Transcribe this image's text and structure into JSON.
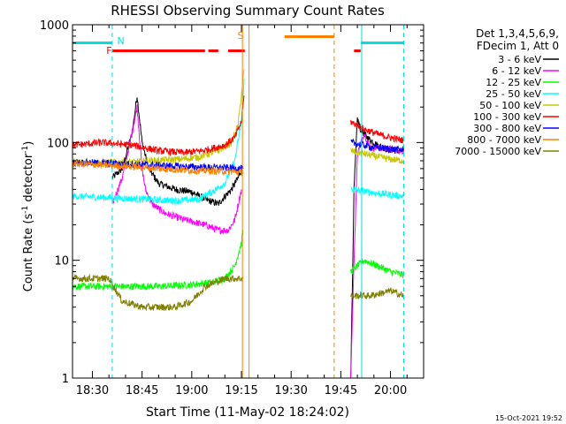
{
  "chart_data": {
    "type": "line",
    "title": "RHESSI Observing Summary Count Rates",
    "xlabel": "Start Time (11-May-02 18:24:02)",
    "ylabel_main": "Count Rate (s",
    "ylabel_sup1": "-1",
    "ylabel_mid": " detector",
    "ylabel_sup2": "-1",
    "ylabel_end": ")",
    "yscale": "log",
    "ylim": [
      1,
      1000
    ],
    "xlim_minutes": [
      -6,
      100
    ],
    "x_origin": "18:24:02",
    "x_ticks": [
      {
        "m": 0,
        "label": "18:30"
      },
      {
        "m": 15,
        "label": "18:45"
      },
      {
        "m": 30,
        "label": "19:00"
      },
      {
        "m": 45,
        "label": "19:15"
      },
      {
        "m": 60,
        "label": "19:30"
      },
      {
        "m": 75,
        "label": "19:45"
      },
      {
        "m": 90,
        "label": "20:00"
      }
    ],
    "y_ticks": [
      {
        "v": 1,
        "label": "1"
      },
      {
        "v": 10,
        "label": "10"
      },
      {
        "v": 100,
        "label": "100"
      },
      {
        "v": 1000,
        "label": "1000"
      }
    ],
    "legend_header": [
      "Det 1,3,4,5,6,9,",
      "FDecim 1, Att 0"
    ],
    "timestamp": "15-Oct-2021 19:52",
    "flags": {
      "night_label": "N",
      "flare_label": "F",
      "saa_label": "S",
      "night": [
        {
          "start": -6,
          "end": 6
        },
        {
          "start": 81,
          "end": 94
        }
      ],
      "flare": [
        {
          "start": 6,
          "end": 34
        },
        {
          "start": 35,
          "end": 38
        },
        {
          "start": 41,
          "end": 46
        }
      ],
      "saa": [
        {
          "start": 58,
          "end": 73
        }
      ],
      "vlines": [
        {
          "m": 6,
          "color": "#00e0e0",
          "dash": true
        },
        {
          "m": 45.3,
          "color": "#ff8000",
          "dash": false
        },
        {
          "m": 47.3,
          "color": "#ff8000",
          "dash": false
        },
        {
          "m": 73,
          "color": "#ff8000",
          "dash": true
        },
        {
          "m": 81.3,
          "color": "#00e0e0",
          "dash": false
        },
        {
          "m": 94,
          "color": "#00e0e0",
          "dash": true
        }
      ]
    },
    "series": [
      {
        "name": "3 - 6 keV",
        "color": "#000000",
        "segments": [
          [
            [
              -6,
              1
            ],
            [
              6,
              1
            ]
          ],
          [
            [
              6,
              50
            ],
            [
              9,
              60
            ],
            [
              12,
              120
            ],
            [
              13.5,
              250
            ],
            [
              15,
              100
            ],
            [
              17,
              60
            ],
            [
              20,
              45
            ],
            [
              25,
              40
            ],
            [
              30,
              38
            ],
            [
              34,
              33
            ],
            [
              38,
              30
            ],
            [
              40,
              35
            ],
            [
              42,
              40
            ],
            [
              44,
              50
            ],
            [
              45,
              60
            ]
          ],
          [
            [
              78,
              1
            ],
            [
              79,
              40
            ],
            [
              80,
              160
            ],
            [
              81,
              130
            ],
            [
              83,
              110
            ],
            [
              86,
              95
            ],
            [
              89,
              88
            ],
            [
              92,
              85
            ],
            [
              94,
              85
            ]
          ]
        ]
      },
      {
        "name": "6 - 12 keV",
        "color": "#ff00ff",
        "segments": [
          [
            [
              -6,
              1
            ],
            [
              6,
              1
            ]
          ],
          [
            [
              6,
              30
            ],
            [
              9,
              50
            ],
            [
              11,
              90
            ],
            [
              13.5,
              200
            ],
            [
              15,
              60
            ],
            [
              16,
              40
            ],
            [
              18,
              30
            ],
            [
              22,
              25
            ],
            [
              28,
              22
            ],
            [
              34,
              20
            ],
            [
              38,
              18
            ],
            [
              41,
              18
            ],
            [
              43,
              22
            ],
            [
              45,
              40
            ]
          ],
          [
            [
              78,
              1
            ],
            [
              79,
              10
            ],
            [
              80,
              80
            ],
            [
              82,
              120
            ],
            [
              84,
              90
            ],
            [
              87,
              90
            ],
            [
              90,
              88
            ],
            [
              94,
              85
            ]
          ]
        ]
      },
      {
        "name": "12 - 25 keV",
        "color": "#00ff00",
        "segments": [
          [
            [
              -6,
              6
            ],
            [
              10,
              6
            ],
            [
              20,
              6
            ],
            [
              30,
              6.2
            ],
            [
              36,
              6.5
            ],
            [
              40,
              7
            ],
            [
              43,
              9
            ],
            [
              45,
              14
            ],
            [
              45.5,
              18
            ]
          ],
          [
            [
              78,
              8
            ],
            [
              82,
              10
            ],
            [
              86,
              9
            ],
            [
              90,
              8
            ],
            [
              94,
              7.5
            ]
          ]
        ]
      },
      {
        "name": "25 - 50 keV",
        "color": "#00ffff",
        "segments": [
          [
            [
              -6,
              35
            ],
            [
              5,
              34
            ],
            [
              15,
              33
            ],
            [
              25,
              32
            ],
            [
              32,
              33
            ],
            [
              36,
              38
            ],
            [
              40,
              45
            ],
            [
              43,
              70
            ],
            [
              45,
              150
            ],
            [
              45.8,
              350
            ]
          ],
          [
            [
              78,
              40
            ],
            [
              86,
              37
            ],
            [
              90,
              36
            ],
            [
              94,
              35
            ]
          ]
        ]
      },
      {
        "name": "50 - 100 keV",
        "color": "#c8c800",
        "segments": [
          [
            [
              -6,
              68
            ],
            [
              5,
              68
            ],
            [
              12,
              68
            ],
            [
              18,
              70
            ],
            [
              26,
              72
            ],
            [
              32,
              75
            ],
            [
              38,
              85
            ],
            [
              42,
              100
            ],
            [
              44,
              140
            ],
            [
              45.8,
              420
            ]
          ],
          [
            [
              78,
              85
            ],
            [
              84,
              78
            ],
            [
              90,
              72
            ],
            [
              94,
              70
            ]
          ]
        ]
      },
      {
        "name": "100 - 300 keV",
        "color": "#ff0000",
        "segments": [
          [
            [
              -6,
              95
            ],
            [
              3,
              100
            ],
            [
              12,
              95
            ],
            [
              20,
              85
            ],
            [
              28,
              82
            ],
            [
              34,
              86
            ],
            [
              40,
              95
            ],
            [
              43,
              110
            ],
            [
              45,
              150
            ],
            [
              45.8,
              250
            ]
          ],
          [
            [
              78,
              150
            ],
            [
              82,
              130
            ],
            [
              86,
              118
            ],
            [
              90,
              110
            ],
            [
              94,
              104
            ]
          ]
        ]
      },
      {
        "name": "300 - 800 keV",
        "color": "#0000ff",
        "segments": [
          [
            [
              -6,
              68
            ],
            [
              10,
              66
            ],
            [
              20,
              64
            ],
            [
              30,
              62
            ],
            [
              40,
              61
            ],
            [
              45.5,
              60
            ]
          ],
          [
            [
              78,
              100
            ],
            [
              84,
              92
            ],
            [
              90,
              88
            ],
            [
              94,
              86
            ]
          ]
        ]
      },
      {
        "name": "800 - 7000 keV",
        "color": "#ff8000",
        "segments": [
          [
            [
              -6,
              66
            ],
            [
              10,
              63
            ],
            [
              20,
              60
            ],
            [
              30,
              58
            ],
            [
              40,
              57
            ],
            [
              45.5,
              56
            ]
          ]
        ]
      },
      {
        "name": "7000 - 15000 keV",
        "color": "#808000",
        "segments": [
          [
            [
              -6,
              7
            ],
            [
              5,
              7
            ],
            [
              9,
              4.5
            ],
            [
              15,
              4
            ],
            [
              25,
              4
            ],
            [
              30,
              4.5
            ],
            [
              34,
              6
            ],
            [
              40,
              7
            ],
            [
              45.5,
              7
            ]
          ],
          [
            [
              78,
              5
            ],
            [
              84,
              5
            ],
            [
              90,
              5.5
            ],
            [
              94,
              5
            ]
          ]
        ]
      }
    ]
  }
}
